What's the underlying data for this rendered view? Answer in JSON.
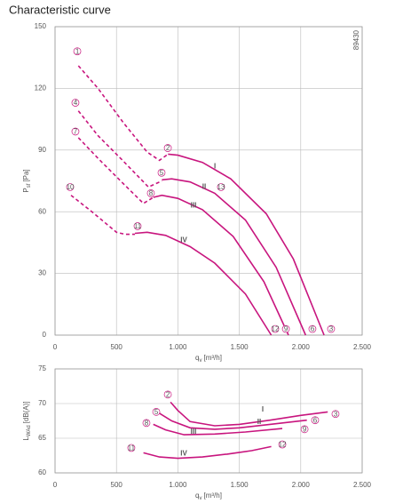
{
  "chart_data": [
    {
      "type": "line",
      "title": "Characteristic curve",
      "note": "89430",
      "ylabel": {
        "main": "P",
        "sub": "sf",
        "unit": "[Pa]"
      },
      "xlabel": {
        "main": "q",
        "sub": "v",
        "unit": "[m³/h]"
      },
      "xlim": [
        0,
        2500
      ],
      "xticks": [
        0,
        500,
        {
          "value": 1000,
          "label": "1.000"
        },
        {
          "value": 1500,
          "label": "1.500"
        },
        {
          "value": 2000,
          "label": "2.000"
        },
        {
          "value": 2500,
          "label": "2.500"
        }
      ],
      "ylim": [
        0,
        150
      ],
      "yticks": [
        0,
        30,
        60,
        90,
        120,
        150
      ],
      "grid": true,
      "series": [
        {
          "color": "#c8157e",
          "style": "dashed",
          "x": [
            190,
            350,
            560,
            750,
            850,
            920
          ],
          "values": [
            131,
            120,
            103,
            89,
            85,
            88
          ]
        },
        {
          "color": "#c8157e",
          "style": "solid",
          "x": [
            920,
            1000,
            1200,
            1430,
            1720,
            1940,
            2190
          ],
          "values": [
            88,
            87.5,
            84,
            76,
            59,
            37,
            0
          ]
        },
        {
          "color": "#c8157e",
          "style": "dashed",
          "x": [
            190,
            350,
            550,
            760,
            870
          ],
          "values": [
            109,
            97,
            85,
            72,
            75
          ]
        },
        {
          "color": "#c8157e",
          "style": "solid",
          "x": [
            870,
            950,
            1100,
            1300,
            1550,
            1800,
            2040
          ],
          "values": [
            75.5,
            76,
            74.5,
            69,
            56,
            33,
            0
          ]
        },
        {
          "color": "#c8157e",
          "style": "dashed",
          "x": [
            190,
            350,
            550,
            720,
            800
          ],
          "values": [
            96,
            86,
            74,
            64,
            67
          ]
        },
        {
          "color": "#c8157e",
          "style": "solid",
          "x": [
            800,
            870,
            1000,
            1200,
            1450,
            1700,
            1900
          ],
          "values": [
            67,
            68,
            66.5,
            61,
            48,
            26,
            0
          ]
        },
        {
          "color": "#c8157e",
          "style": "dashed",
          "x": [
            130,
            300,
            500,
            570,
            650
          ],
          "values": [
            68,
            60,
            50,
            49,
            49
          ]
        },
        {
          "color": "#c8157e",
          "style": "solid",
          "x": [
            650,
            750,
            900,
            1100,
            1300,
            1550,
            1760
          ],
          "values": [
            49.5,
            50,
            48.5,
            43,
            35,
            20,
            0
          ]
        }
      ],
      "annotations": [
        {
          "text": "1",
          "x": 181,
          "y": 138
        },
        {
          "text": "2",
          "x": 918,
          "y": 91
        },
        {
          "text": "3",
          "x": 2247,
          "y": 3
        },
        {
          "text": "4",
          "x": 166,
          "y": 113
        },
        {
          "text": "5",
          "x": 867,
          "y": 79
        },
        {
          "text": "6",
          "x": 2095,
          "y": 3
        },
        {
          "text": "7",
          "x": 166,
          "y": 99
        },
        {
          "text": "8",
          "x": 780,
          "y": 69
        },
        {
          "text": "9",
          "x": 1879,
          "y": 3
        },
        {
          "text": "10",
          "x": 123,
          "y": 72
        },
        {
          "text": "11",
          "x": 672,
          "y": 53
        },
        {
          "text": "12",
          "x": 1792,
          "y": 3
        },
        {
          "text": "13",
          "x": 1351,
          "y": 72
        },
        {
          "text": "I",
          "x": 1301,
          "y": 82
        },
        {
          "text": "II",
          "x": 1214,
          "y": 72
        },
        {
          "text": "III",
          "x": 1127,
          "y": 63
        },
        {
          "text": "IV",
          "x": 1048,
          "y": 46
        }
      ]
    },
    {
      "type": "line",
      "ylabel": {
        "main": "L",
        "sub": "WAd",
        "unit": "[dB(A)]"
      },
      "xlabel": {
        "main": "q",
        "sub": "v",
        "unit": "[m³/h]"
      },
      "xlim": [
        0,
        2500
      ],
      "xticks": [
        0,
        500,
        {
          "value": 1000,
          "label": "1.000"
        },
        {
          "value": 1500,
          "label": "1.500"
        },
        {
          "value": 2000,
          "label": "2.000"
        },
        {
          "value": 2500,
          "label": "2.500"
        }
      ],
      "ylim": [
        60,
        75
      ],
      "yticks": [
        60,
        65,
        70,
        75
      ],
      "grid": true,
      "series": [
        {
          "color": "#c8157e",
          "style": "solid",
          "x": [
            940,
            1000,
            1100,
            1300,
            1500,
            1750,
            2000,
            2220
          ],
          "values": [
            70.2,
            69,
            67.4,
            66.8,
            67,
            67.6,
            68.3,
            68.8
          ]
        },
        {
          "color": "#c8157e",
          "style": "solid",
          "x": [
            850,
            950,
            1100,
            1300,
            1500,
            1750,
            2050
          ],
          "values": [
            68.6,
            67.5,
            66.5,
            66.3,
            66.5,
            67,
            67.6
          ]
        },
        {
          "color": "#c8157e",
          "style": "solid",
          "x": [
            800,
            900,
            1050,
            1300,
            1550,
            1850
          ],
          "values": [
            67,
            66.2,
            65.5,
            65.6,
            65.9,
            66.4
          ]
        },
        {
          "color": "#c8157e",
          "style": "solid",
          "x": [
            720,
            850,
            1000,
            1200,
            1400,
            1600,
            1760
          ],
          "values": [
            62.9,
            62.3,
            62.1,
            62.3,
            62.7,
            63.2,
            63.8
          ]
        }
      ],
      "annotations": [
        {
          "text": "2",
          "x": 918,
          "y": 71.3
        },
        {
          "text": "5",
          "x": 824,
          "y": 68.8
        },
        {
          "text": "8",
          "x": 744,
          "y": 67.2
        },
        {
          "text": "11",
          "x": 621,
          "y": 63.6
        },
        {
          "text": "3",
          "x": 2283,
          "y": 68.5
        },
        {
          "text": "6",
          "x": 2117,
          "y": 67.6
        },
        {
          "text": "9",
          "x": 2031,
          "y": 66.3
        },
        {
          "text": "12",
          "x": 1850,
          "y": 64.1
        },
        {
          "text": "I",
          "x": 1691,
          "y": 69.1
        },
        {
          "text": "II",
          "x": 1662,
          "y": 67.3
        },
        {
          "text": "III",
          "x": 1127,
          "y": 65.9
        },
        {
          "text": "IV",
          "x": 1048,
          "y": 62.8
        }
      ]
    }
  ]
}
